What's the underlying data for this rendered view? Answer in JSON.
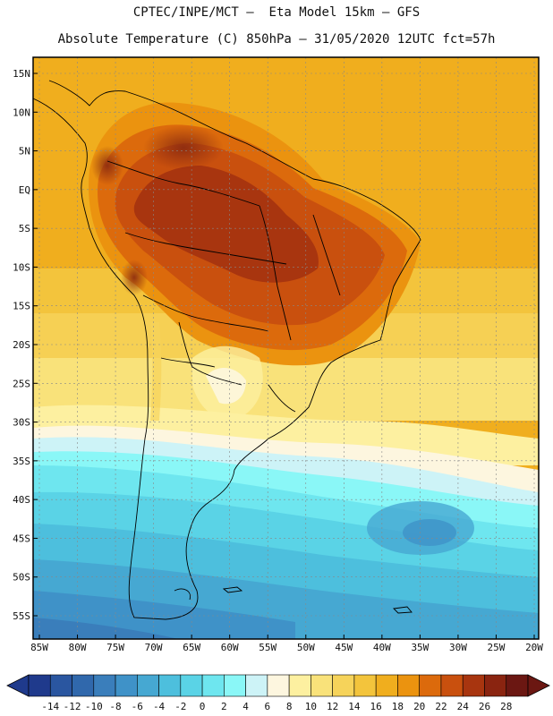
{
  "header": {
    "line1": "CPTEC/INPE/MCT –  Eta Model 15km – GFS",
    "line2": "Absolute Temperature (C) 850hPa – 31/05/2020 12UTC fct=57h"
  },
  "axes": {
    "lat_labels": [
      "15N",
      "10N",
      "5N",
      "EQ",
      "5S",
      "10S",
      "15S",
      "20S",
      "25S",
      "30S",
      "35S",
      "40S",
      "45S",
      "50S",
      "55S"
    ],
    "lat_values": [
      15,
      10,
      5,
      0,
      -5,
      -10,
      -15,
      -20,
      -25,
      -30,
      -35,
      -40,
      -45,
      -50,
      -55
    ],
    "lon_labels": [
      "85W",
      "80W",
      "75W",
      "70W",
      "65W",
      "60W",
      "55W",
      "50W",
      "45W",
      "40W",
      "35W",
      "30W",
      "25W",
      "20W"
    ],
    "lon_values": [
      -85,
      -80,
      -75,
      -70,
      -65,
      -60,
      -55,
      -50,
      -45,
      -40,
      -35,
      -30,
      -25,
      -20
    ]
  },
  "colorbar": {
    "tick_labels": [
      "-14",
      "-12",
      "-10",
      "-8",
      "-6",
      "-4",
      "-2",
      "0",
      "2",
      "4",
      "6",
      "8",
      "10",
      "12",
      "14",
      "16",
      "18",
      "20",
      "22",
      "24",
      "26",
      "28"
    ],
    "colors": [
      "#1f3a8c",
      "#2a56a0",
      "#3068ac",
      "#3a7ebb",
      "#3f92c8",
      "#46a8d2",
      "#4dbfdd",
      "#5ad3e6",
      "#6ee6ef",
      "#8af7f7",
      "#cdf3f7",
      "#fdf6df",
      "#fdf0a0",
      "#f9e27a",
      "#f6d35a",
      "#f3c43c",
      "#f0ae1e",
      "#eb930f",
      "#dc6a0c",
      "#c9500e",
      "#a8350f",
      "#8a2410",
      "#6b1712"
    ]
  }
}
